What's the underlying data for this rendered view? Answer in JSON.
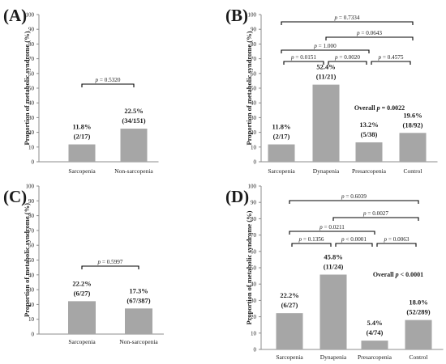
{
  "chart_data": [
    {
      "panel": "(A)",
      "type": "bar",
      "ylabel": "Proportion of metabolic syndrome (%)",
      "ylim": [
        0,
        100
      ],
      "yticks": [
        0,
        10,
        20,
        30,
        40,
        50,
        60,
        70,
        80,
        90,
        100
      ],
      "categories": [
        "Sarcopenia",
        "Non-sarcopenia"
      ],
      "values": [
        11.8,
        22.5
      ],
      "value_labels": [
        "11.8%",
        "22.5%"
      ],
      "count_labels": [
        "(2/17)",
        "(34/151)"
      ],
      "brackets": [
        {
          "from": 0,
          "to": 1,
          "label": "p = 0.5320"
        }
      ],
      "overall": ""
    },
    {
      "panel": "(B)",
      "type": "bar",
      "ylabel": "Proportion of metabolic syndrome (%)",
      "ylim": [
        0,
        100
      ],
      "yticks": [
        0,
        10,
        20,
        30,
        40,
        50,
        60,
        70,
        80,
        90,
        100
      ],
      "categories": [
        "Sarcopenia",
        "Dynapenia",
        "Presarcopenia",
        "Control"
      ],
      "values": [
        11.8,
        52.4,
        13.2,
        19.6
      ],
      "value_labels": [
        "11.8%",
        "52.4%",
        "13.2%",
        "19.6%"
      ],
      "count_labels": [
        "(2/17)",
        "(11/21)",
        "(5/38)",
        "(18/92)"
      ],
      "brackets": [
        {
          "from": 0,
          "to": 3,
          "label": "p = 0.7334"
        },
        {
          "from": 1,
          "to": 3,
          "label": "p = 0.0643"
        },
        {
          "from": 0,
          "to": 2,
          "label": "p = 1.000"
        },
        {
          "from": 0,
          "to": 1,
          "label": "p = 0.0151"
        },
        {
          "from": 1,
          "to": 2,
          "label": "p = 0.0020"
        },
        {
          "from": 2,
          "to": 3,
          "label": "p = 0.4575"
        }
      ],
      "overall": "Overall p = 0.0022"
    },
    {
      "panel": "(C)",
      "type": "bar",
      "ylabel": "Proportion of metabolic syndrome (%)",
      "ylim": [
        0,
        100
      ],
      "yticks": [
        0,
        10,
        20,
        30,
        40,
        50,
        60,
        70,
        80,
        90,
        100
      ],
      "categories": [
        "Sarcopenia",
        "Non-sarcopenia"
      ],
      "values": [
        22.2,
        17.3
      ],
      "value_labels": [
        "22.2%",
        "17.3%"
      ],
      "count_labels": [
        "(6/27)",
        "(67/387)"
      ],
      "brackets": [
        {
          "from": 0,
          "to": 1,
          "label": "p = 0.5997"
        }
      ],
      "overall": ""
    },
    {
      "panel": "(D)",
      "type": "bar",
      "ylabel": "Proportion of metabolic syndrome (%)",
      "ylim": [
        0,
        100
      ],
      "yticks": [
        0,
        10,
        20,
        30,
        40,
        50,
        60,
        70,
        80,
        90,
        100
      ],
      "categories": [
        "Sarcopenia",
        "Dynapenia",
        "Presarcopenia",
        "Control"
      ],
      "values": [
        22.2,
        45.8,
        5.4,
        18.0
      ],
      "value_labels": [
        "22.2%",
        "45.8%",
        "5.4%",
        "18.0%"
      ],
      "count_labels": [
        "(6/27)",
        "(11/24)",
        "(4/74)",
        "(52/289)"
      ],
      "brackets": [
        {
          "from": 0,
          "to": 3,
          "label": "p = 0.6039"
        },
        {
          "from": 1,
          "to": 3,
          "label": "p = 0.0027"
        },
        {
          "from": 0,
          "to": 2,
          "label": "p = 0.0211"
        },
        {
          "from": 0,
          "to": 1,
          "label": "p = 0.1356"
        },
        {
          "from": 1,
          "to": 2,
          "label": "p < 0.0001"
        },
        {
          "from": 2,
          "to": 3,
          "label": "p = 0.0063"
        }
      ],
      "overall": "Overall p < 0.0001"
    }
  ],
  "colors": {
    "bar_fill": "#a6a6a6",
    "axis": "#8c8c8c",
    "bracket": "#000000",
    "text": "#1a1a1a"
  }
}
